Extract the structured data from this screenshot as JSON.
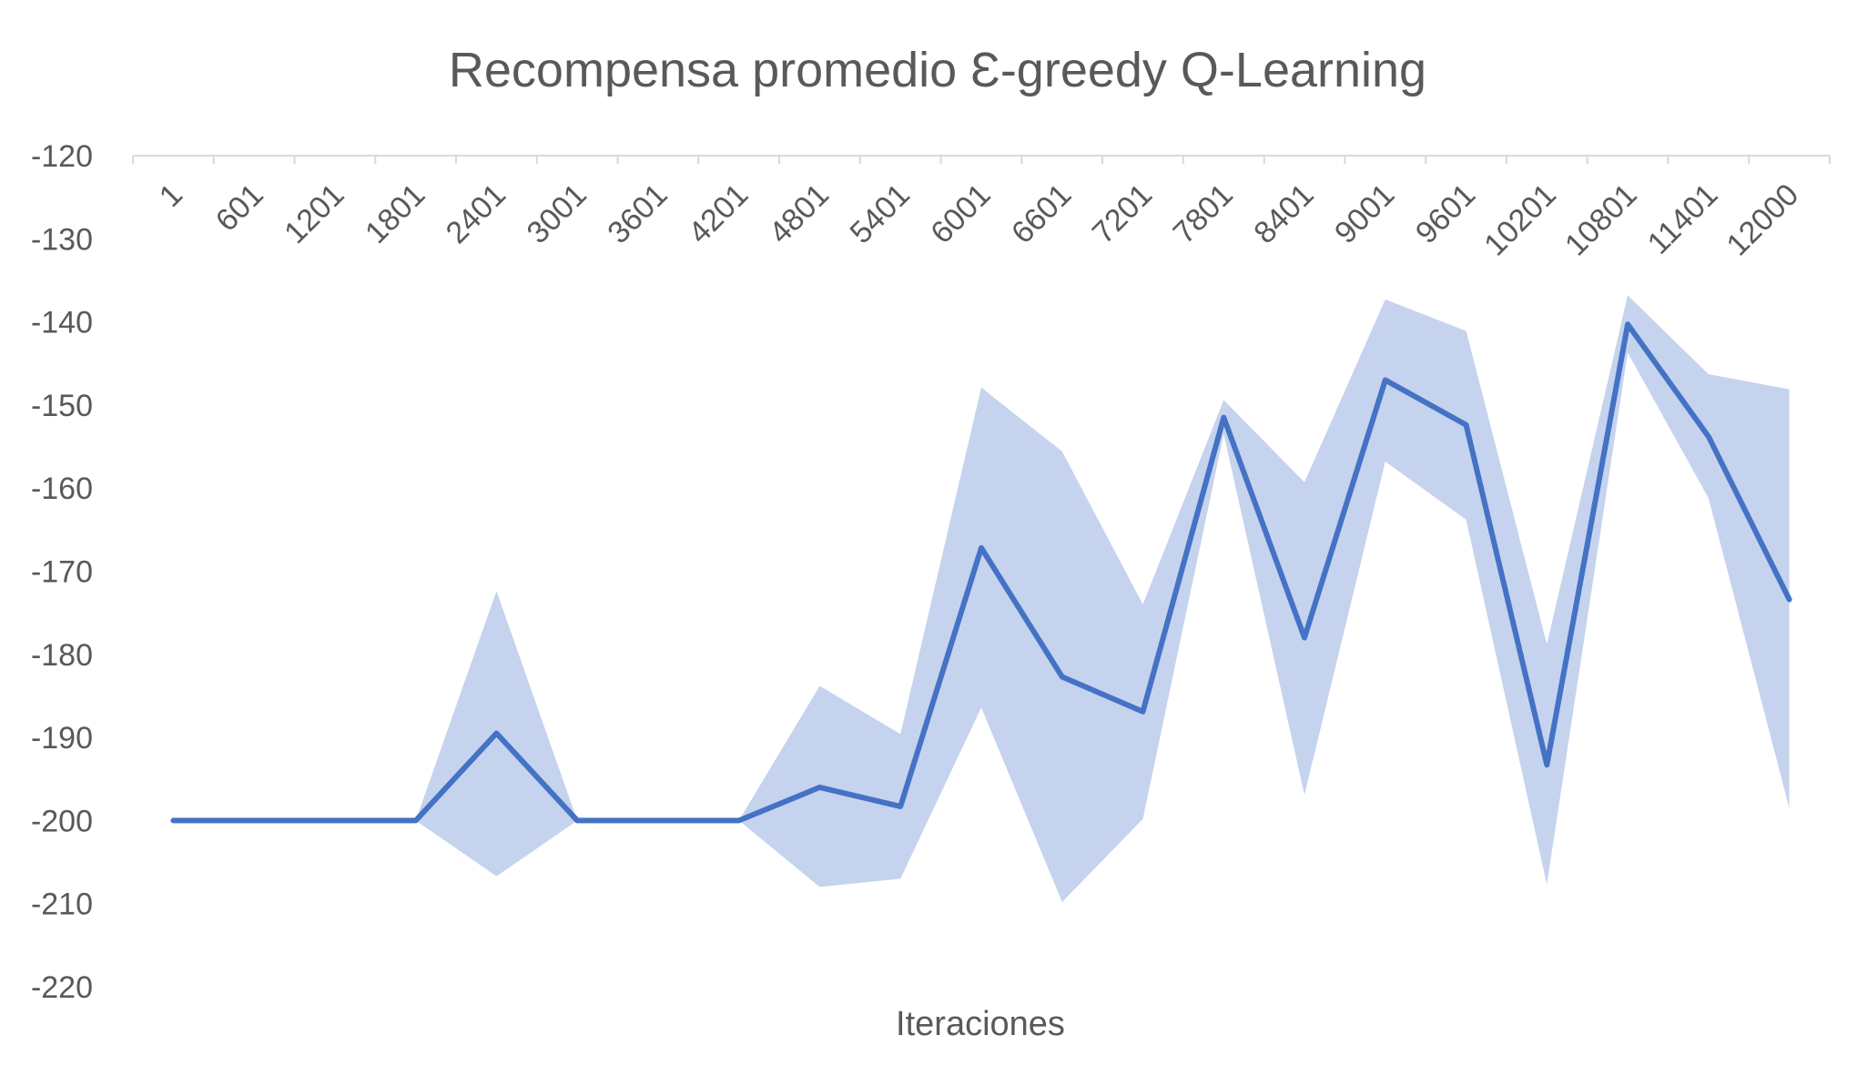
{
  "chart_data": {
    "type": "line",
    "title": "Recompensa promedio Ɛ-greedy Q-Learning",
    "xlabel": "Iteraciones",
    "ylabel": "",
    "ylim": [
      -220,
      -120
    ],
    "yticks": [
      -120,
      -130,
      -140,
      -150,
      -160,
      -170,
      -180,
      -190,
      -200,
      -210,
      -220
    ],
    "categories": [
      "1",
      "601",
      "1201",
      "1801",
      "2401",
      "3001",
      "3601",
      "4201",
      "4801",
      "5401",
      "6001",
      "6601",
      "7201",
      "7801",
      "8401",
      "9001",
      "9601",
      "10201",
      "10801",
      "11401",
      "12000"
    ],
    "series": [
      {
        "values": [
          -200,
          -200,
          -200,
          -200,
          -189.5,
          -200,
          -200,
          -200,
          -196,
          -198.3,
          -167.2,
          -182.7,
          -186.9,
          -151.5,
          -178,
          -147,
          -152.4,
          -193.3,
          -140.3,
          -153.8,
          -173.4
        ],
        "upper": [
          -200,
          -200,
          -200,
          -200,
          -172.4,
          -200,
          -200,
          -200,
          -183.8,
          -189.6,
          -147.9,
          -155.6,
          -174,
          -149.4,
          -159.3,
          -137.3,
          -141.1,
          -178.8,
          -136.8,
          -146.3,
          -148.1
        ],
        "lower": [
          -200,
          -200,
          -200,
          -200,
          -206.7,
          -200,
          -200,
          -200,
          -208,
          -207,
          -186.4,
          -209.8,
          -199.8,
          -153.5,
          -196.9,
          -156.8,
          -163.8,
          -207.7,
          -143.7,
          -161.2,
          -198.5
        ]
      }
    ],
    "colors": {
      "line": "#4472C4",
      "band": "#C5D3EE",
      "axis": "#D9D9D9",
      "text": "#595959"
    },
    "grid": false,
    "legend": "none"
  }
}
